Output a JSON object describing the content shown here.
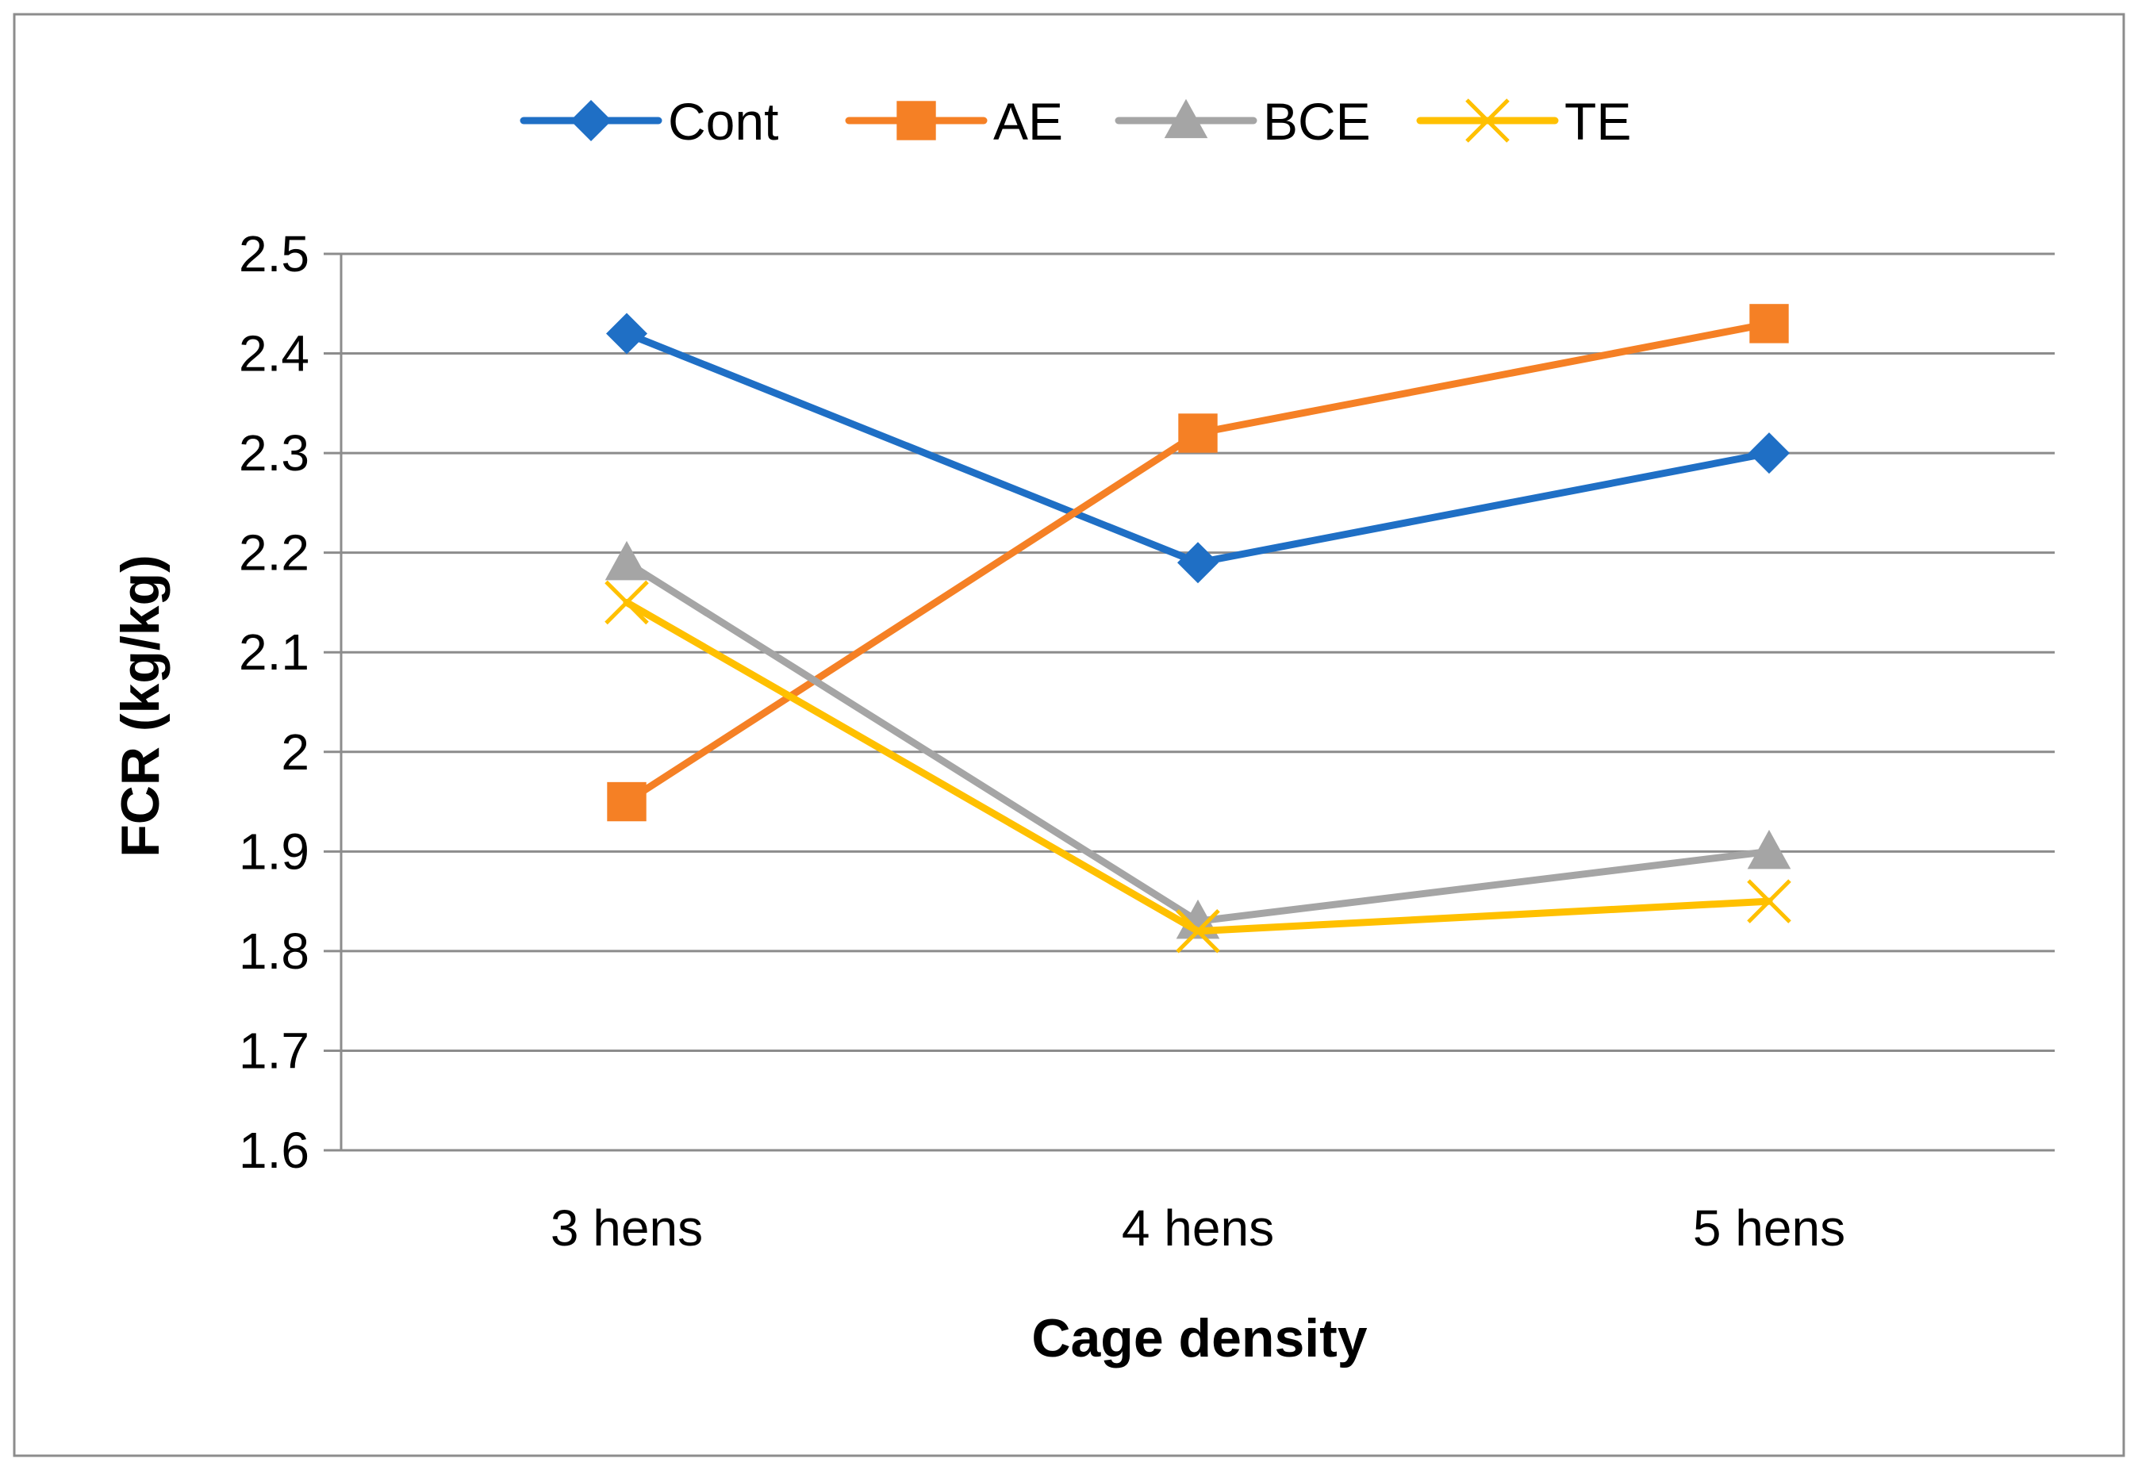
{
  "chart_data": {
    "type": "line",
    "title": "",
    "xlabel": "Cage density",
    "ylabel": "FCR (kg/kg)",
    "categories": [
      "3 hens",
      "4 hens",
      "5 hens"
    ],
    "ylim": [
      1.6,
      2.5
    ],
    "yticks": [
      1.6,
      1.7,
      1.8,
      1.9,
      2,
      2.1,
      2.2,
      2.3,
      2.4,
      2.5
    ],
    "ytick_labels": [
      "1.6",
      "1.7",
      "1.8",
      "1.9",
      "2",
      "2.1",
      "2.2",
      "2.3",
      "2.4",
      "2.5"
    ],
    "grid": true,
    "legend_position": "top",
    "series": [
      {
        "name": "Cont",
        "values": [
          2.42,
          2.19,
          2.3
        ],
        "color": "#1F6FC5",
        "marker": "diamond"
      },
      {
        "name": "AE",
        "values": [
          1.95,
          2.32,
          2.43
        ],
        "color": "#F58025",
        "marker": "square"
      },
      {
        "name": "BCE",
        "values": [
          2.19,
          1.83,
          1.9
        ],
        "color": "#A5A5A5",
        "marker": "triangle"
      },
      {
        "name": "TE",
        "values": [
          2.15,
          1.82,
          1.85
        ],
        "color": "#FFC000",
        "marker": "x"
      }
    ]
  }
}
